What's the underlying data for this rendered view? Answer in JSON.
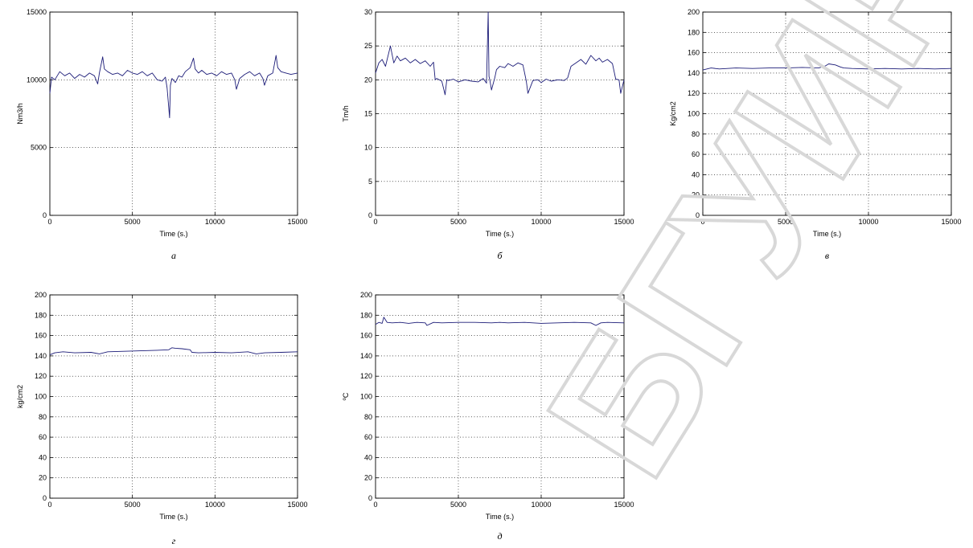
{
  "watermark": "БГУИР",
  "chart_data": [
    {
      "type": "line",
      "caption": "а",
      "xlabel": "Time (s.)",
      "ylabel": "Nm3/h",
      "xlim": [
        0,
        15000
      ],
      "ylim": [
        0,
        15000
      ],
      "xticks": [
        0,
        5000,
        10000,
        15000
      ],
      "yticks": [
        0,
        5000,
        10000,
        15000
      ],
      "grid": true,
      "line_color": "#1c1c78",
      "series": [
        {
          "x": [
            0,
            100,
            300,
            600,
            900,
            1200,
            1500,
            1800,
            2100,
            2400,
            2700,
            2900,
            3000,
            3200,
            3300,
            3500,
            3800,
            4100,
            4400,
            4700,
            5000,
            5300,
            5600,
            5900,
            6200,
            6500,
            6800,
            7000,
            7100,
            7200,
            7250,
            7300,
            7400,
            7600,
            7800,
            8000,
            8200,
            8500,
            8700,
            8800,
            9000,
            9200,
            9500,
            9800,
            10100,
            10400,
            10700,
            11000,
            11200,
            11300,
            11500,
            11800,
            12100,
            12400,
            12700,
            12900,
            13000,
            13200,
            13500,
            13700,
            13800,
            14000,
            14300,
            14600,
            15000
          ],
          "y": [
            9000,
            10200,
            10000,
            10600,
            10300,
            10500,
            10100,
            10400,
            10200,
            10500,
            10300,
            9700,
            10500,
            11700,
            10800,
            10600,
            10400,
            10500,
            10300,
            10700,
            10500,
            10400,
            10600,
            10300,
            10500,
            10000,
            9900,
            10200,
            9400,
            8000,
            7200,
            9600,
            10100,
            9800,
            10300,
            10200,
            10600,
            10900,
            11600,
            10800,
            10500,
            10700,
            10400,
            10500,
            10300,
            10600,
            10400,
            10500,
            10000,
            9300,
            10100,
            10400,
            10600,
            10300,
            10500,
            10100,
            9600,
            10300,
            10500,
            11800,
            10900,
            10600,
            10500,
            10400,
            10500
          ]
        }
      ]
    },
    {
      "type": "line",
      "caption": "б",
      "xlabel": "Time (s.)",
      "ylabel": "Tm/h",
      "xlim": [
        0,
        15000
      ],
      "ylim": [
        0,
        30
      ],
      "xticks": [
        0,
        5000,
        10000,
        15000
      ],
      "yticks": [
        0,
        5,
        10,
        15,
        20,
        25,
        30
      ],
      "grid": true,
      "line_color": "#1c1c78",
      "series": [
        {
          "x": [
            0,
            200,
            400,
            600,
            800,
            900,
            1100,
            1300,
            1500,
            1800,
            2100,
            2400,
            2700,
            3000,
            3300,
            3500,
            3600,
            3700,
            4000,
            4200,
            4300,
            4400,
            4700,
            5000,
            5400,
            5800,
            6200,
            6500,
            6700,
            6800,
            6850,
            6900,
            7000,
            7200,
            7300,
            7500,
            7800,
            8000,
            8300,
            8600,
            8900,
            9100,
            9200,
            9500,
            9800,
            10000,
            10300,
            10600,
            11000,
            11400,
            11600,
            11800,
            12100,
            12400,
            12700,
            13000,
            13300,
            13500,
            13700,
            14000,
            14300,
            14500,
            14700,
            14800,
            15000
          ],
          "y": [
            21,
            22.5,
            23,
            22,
            24,
            25,
            22.5,
            23.5,
            22.8,
            23.2,
            22.5,
            23,
            22.4,
            22.8,
            22,
            22.6,
            20,
            20.2,
            19.8,
            17.8,
            20,
            19.9,
            20.1,
            19.7,
            20,
            19.8,
            19.7,
            20.2,
            19.5,
            30,
            20.5,
            20,
            18.5,
            20.3,
            21.5,
            22,
            21.8,
            22.4,
            22,
            22.5,
            22.2,
            19.8,
            18,
            19.9,
            20,
            19.6,
            20.1,
            19.8,
            20,
            19.9,
            20.3,
            22,
            22.5,
            23,
            22.3,
            23.6,
            22.8,
            23.2,
            22.6,
            23,
            22.4,
            20.1,
            20,
            18,
            20
          ]
        }
      ]
    },
    {
      "type": "line",
      "caption": "в",
      "xlabel": "Time (s.)",
      "ylabel": "Kg/cm2",
      "xlim": [
        0,
        15000
      ],
      "ylim": [
        0,
        200
      ],
      "xticks": [
        0,
        5000,
        10000,
        15000
      ],
      "yticks": [
        0,
        20,
        40,
        60,
        80,
        100,
        120,
        140,
        160,
        180,
        200
      ],
      "grid": true,
      "line_color": "#1c1c78",
      "series": [
        {
          "x": [
            0,
            500,
            1000,
            2000,
            3000,
            4000,
            5000,
            6000,
            7000,
            7400,
            7600,
            8000,
            8300,
            8500,
            9000,
            10000,
            11000,
            12000,
            13000,
            14000,
            15000
          ],
          "y": [
            143,
            145,
            144,
            145,
            144.5,
            145,
            145,
            145.5,
            145,
            147,
            149,
            148,
            146,
            145,
            144.5,
            144,
            144.5,
            144,
            144.5,
            144,
            144.5
          ]
        }
      ]
    },
    {
      "type": "line",
      "caption": "г",
      "xlabel": "Time (s.)",
      "ylabel": "kg/cm2",
      "xlim": [
        0,
        15000
      ],
      "ylim": [
        0,
        200
      ],
      "xticks": [
        0,
        5000,
        10000,
        15000
      ],
      "yticks": [
        0,
        20,
        40,
        60,
        80,
        100,
        120,
        140,
        160,
        180,
        200
      ],
      "grid": true,
      "line_color": "#1c1c78",
      "series": [
        {
          "x": [
            0,
            300,
            800,
            1500,
            2500,
            3000,
            3500,
            4500,
            5500,
            6500,
            7200,
            7400,
            7600,
            8000,
            8500,
            8600,
            9000,
            10000,
            11000,
            12000,
            12500,
            13000,
            14000,
            15000
          ],
          "y": [
            141,
            143,
            144,
            143,
            143.5,
            142,
            144,
            144.5,
            145,
            145.5,
            146,
            148,
            147.5,
            147,
            146,
            143.5,
            143,
            143.5,
            143,
            144,
            142,
            143,
            143.5,
            144
          ]
        }
      ]
    },
    {
      "type": "line",
      "caption": "д",
      "xlabel": "Time (s.)",
      "ylabel": "ºC",
      "xlim": [
        0,
        15000
      ],
      "ylim": [
        0,
        200
      ],
      "xticks": [
        0,
        5000,
        10000,
        15000
      ],
      "yticks": [
        0,
        20,
        40,
        60,
        80,
        100,
        120,
        140,
        160,
        180,
        200
      ],
      "grid": true,
      "line_color": "#1c1c78",
      "series": [
        {
          "x": [
            0,
            200,
            400,
            500,
            700,
            1000,
            1500,
            2000,
            2500,
            3000,
            3100,
            3500,
            4000,
            5000,
            6000,
            7000,
            7500,
            8000,
            9000,
            10000,
            11000,
            12000,
            13000,
            13300,
            13600,
            14000,
            15000
          ],
          "y": [
            171,
            173,
            172,
            178,
            173,
            172.5,
            173,
            172,
            173,
            172.5,
            170,
            173,
            172.5,
            173,
            173,
            172.5,
            173,
            172.5,
            173,
            172,
            172.5,
            173,
            172.5,
            170,
            172.5,
            173,
            172.5
          ]
        }
      ]
    }
  ]
}
